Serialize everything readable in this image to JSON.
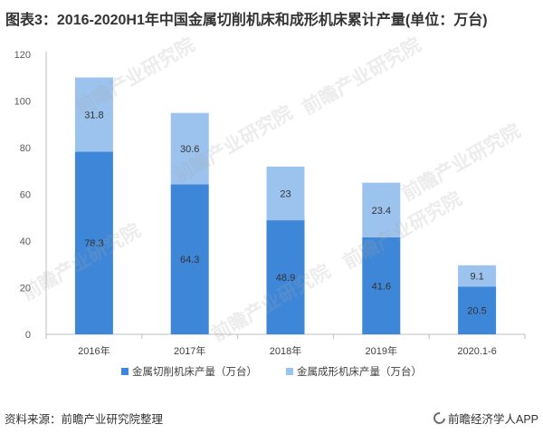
{
  "chart_data": {
    "type": "bar",
    "stacked": true,
    "title": "图表3：2016-2020H1年中国金属切削机床和成形机床累计产量(单位：万台)",
    "xlabel": "",
    "ylabel": "",
    "categories": [
      "2016年",
      "2017年",
      "2018年",
      "2019年",
      "2020.1-6"
    ],
    "series": [
      {
        "name": "金属切削机床产量（万台）",
        "values": [
          78.3,
          64.3,
          48.9,
          41.6,
          20.5
        ],
        "color": "#3d86d8"
      },
      {
        "name": "金属成形机床产量（万台）",
        "values": [
          31.8,
          30.6,
          23,
          23.4,
          9.1
        ],
        "color": "#9cc3ee"
      }
    ],
    "ylim": [
      0,
      120
    ],
    "yticks": [
      0,
      20,
      40,
      60,
      80,
      100,
      120
    ],
    "grid": false,
    "legend": "bottom",
    "data_labels": true
  },
  "watermark": "前瞻产业研究院",
  "footer": {
    "source": "资料来源：前瞻产业研究院整理",
    "brand": "前瞻经济学人APP",
    "logo_icon": "qianzhan-logo-icon"
  }
}
